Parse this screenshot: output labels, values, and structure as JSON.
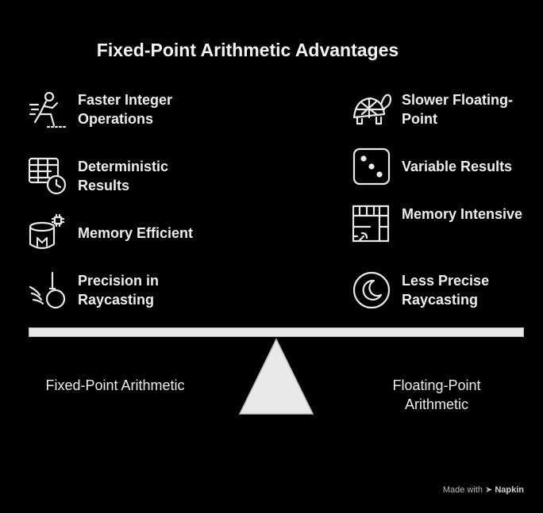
{
  "title": "Fixed-Point Arithmetic Advantages",
  "left_items": [
    {
      "label": "Faster Integer Operations",
      "icon": "sprinter-icon"
    },
    {
      "label": "Deterministic Results",
      "icon": "table-clock-icon"
    },
    {
      "label": "Memory Efficient",
      "icon": "memory-chip-icon"
    },
    {
      "label": "Precision in Raycasting",
      "icon": "wrecking-ball-icon"
    }
  ],
  "right_items": [
    {
      "label": "Slower Floating-Point",
      "icon": "turtle-icon"
    },
    {
      "label": "Variable Results",
      "icon": "dice-icon"
    },
    {
      "label": "Memory Intensive",
      "icon": "floorplan-icon"
    },
    {
      "label": "Less Precise Raycasting",
      "icon": "moon-icon"
    }
  ],
  "left_side_label": "Fixed-Point Arithmetic",
  "right_side_label": "Floating-Point Arithmetic",
  "footer": {
    "made_with": "Made with",
    "brand": "Napkin"
  },
  "colors": {
    "background": "#000000",
    "beam": "#e8e8e8",
    "text": "#ececec"
  }
}
